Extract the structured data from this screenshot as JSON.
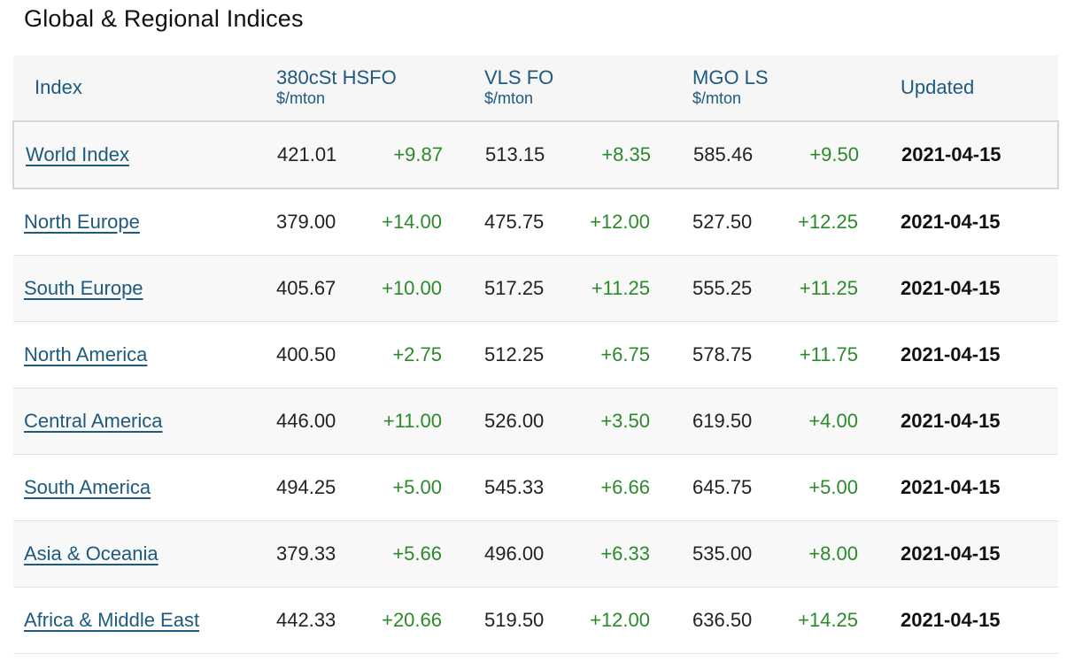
{
  "title": "Global & Regional Indices",
  "table": {
    "headers": {
      "index": "Index",
      "hsfo": {
        "name": "380cSt HSFO",
        "unit": "$/mton"
      },
      "vlsfo": {
        "name": "VLS FO",
        "unit": "$/mton"
      },
      "mgo": {
        "name": "MGO LS",
        "unit": "$/mton"
      },
      "updated": "Updated"
    },
    "rows": [
      {
        "region": "World Index",
        "hsfo": "421.01",
        "hsfo_chg": "+9.87",
        "vlsfo": "513.15",
        "vlsfo_chg": "+8.35",
        "mgo": "585.46",
        "mgo_chg": "+9.50",
        "updated": "2021-04-15"
      },
      {
        "region": "North Europe",
        "hsfo": "379.00",
        "hsfo_chg": "+14.00",
        "vlsfo": "475.75",
        "vlsfo_chg": "+12.00",
        "mgo": "527.50",
        "mgo_chg": "+12.25",
        "updated": "2021-04-15"
      },
      {
        "region": "South Europe",
        "hsfo": "405.67",
        "hsfo_chg": "+10.00",
        "vlsfo": "517.25",
        "vlsfo_chg": "+11.25",
        "mgo": "555.25",
        "mgo_chg": "+11.25",
        "updated": "2021-04-15"
      },
      {
        "region": "North America",
        "hsfo": "400.50",
        "hsfo_chg": "+2.75",
        "vlsfo": "512.25",
        "vlsfo_chg": "+6.75",
        "mgo": "578.75",
        "mgo_chg": "+11.75",
        "updated": "2021-04-15"
      },
      {
        "region": "Central America",
        "hsfo": "446.00",
        "hsfo_chg": "+11.00",
        "vlsfo": "526.00",
        "vlsfo_chg": "+3.50",
        "mgo": "619.50",
        "mgo_chg": "+4.00",
        "updated": "2021-04-15"
      },
      {
        "region": "South America",
        "hsfo": "494.25",
        "hsfo_chg": "+5.00",
        "vlsfo": "545.33",
        "vlsfo_chg": "+6.66",
        "mgo": "645.75",
        "mgo_chg": "+5.00",
        "updated": "2021-04-15"
      },
      {
        "region": "Asia & Oceania",
        "hsfo": "379.33",
        "hsfo_chg": "+5.66",
        "vlsfo": "496.00",
        "vlsfo_chg": "+6.33",
        "mgo": "535.00",
        "mgo_chg": "+8.00",
        "updated": "2021-04-15"
      },
      {
        "region": "Africa & Middle East",
        "hsfo": "442.33",
        "hsfo_chg": "+20.66",
        "vlsfo": "519.50",
        "vlsfo_chg": "+12.00",
        "mgo": "636.50",
        "mgo_chg": "+14.25",
        "updated": "2021-04-15"
      }
    ]
  },
  "colors": {
    "header_text": "#1d5a7e",
    "link": "#1d5a7e",
    "positive_change": "#2b8a2b",
    "header_bg": "#f6f6f6"
  }
}
